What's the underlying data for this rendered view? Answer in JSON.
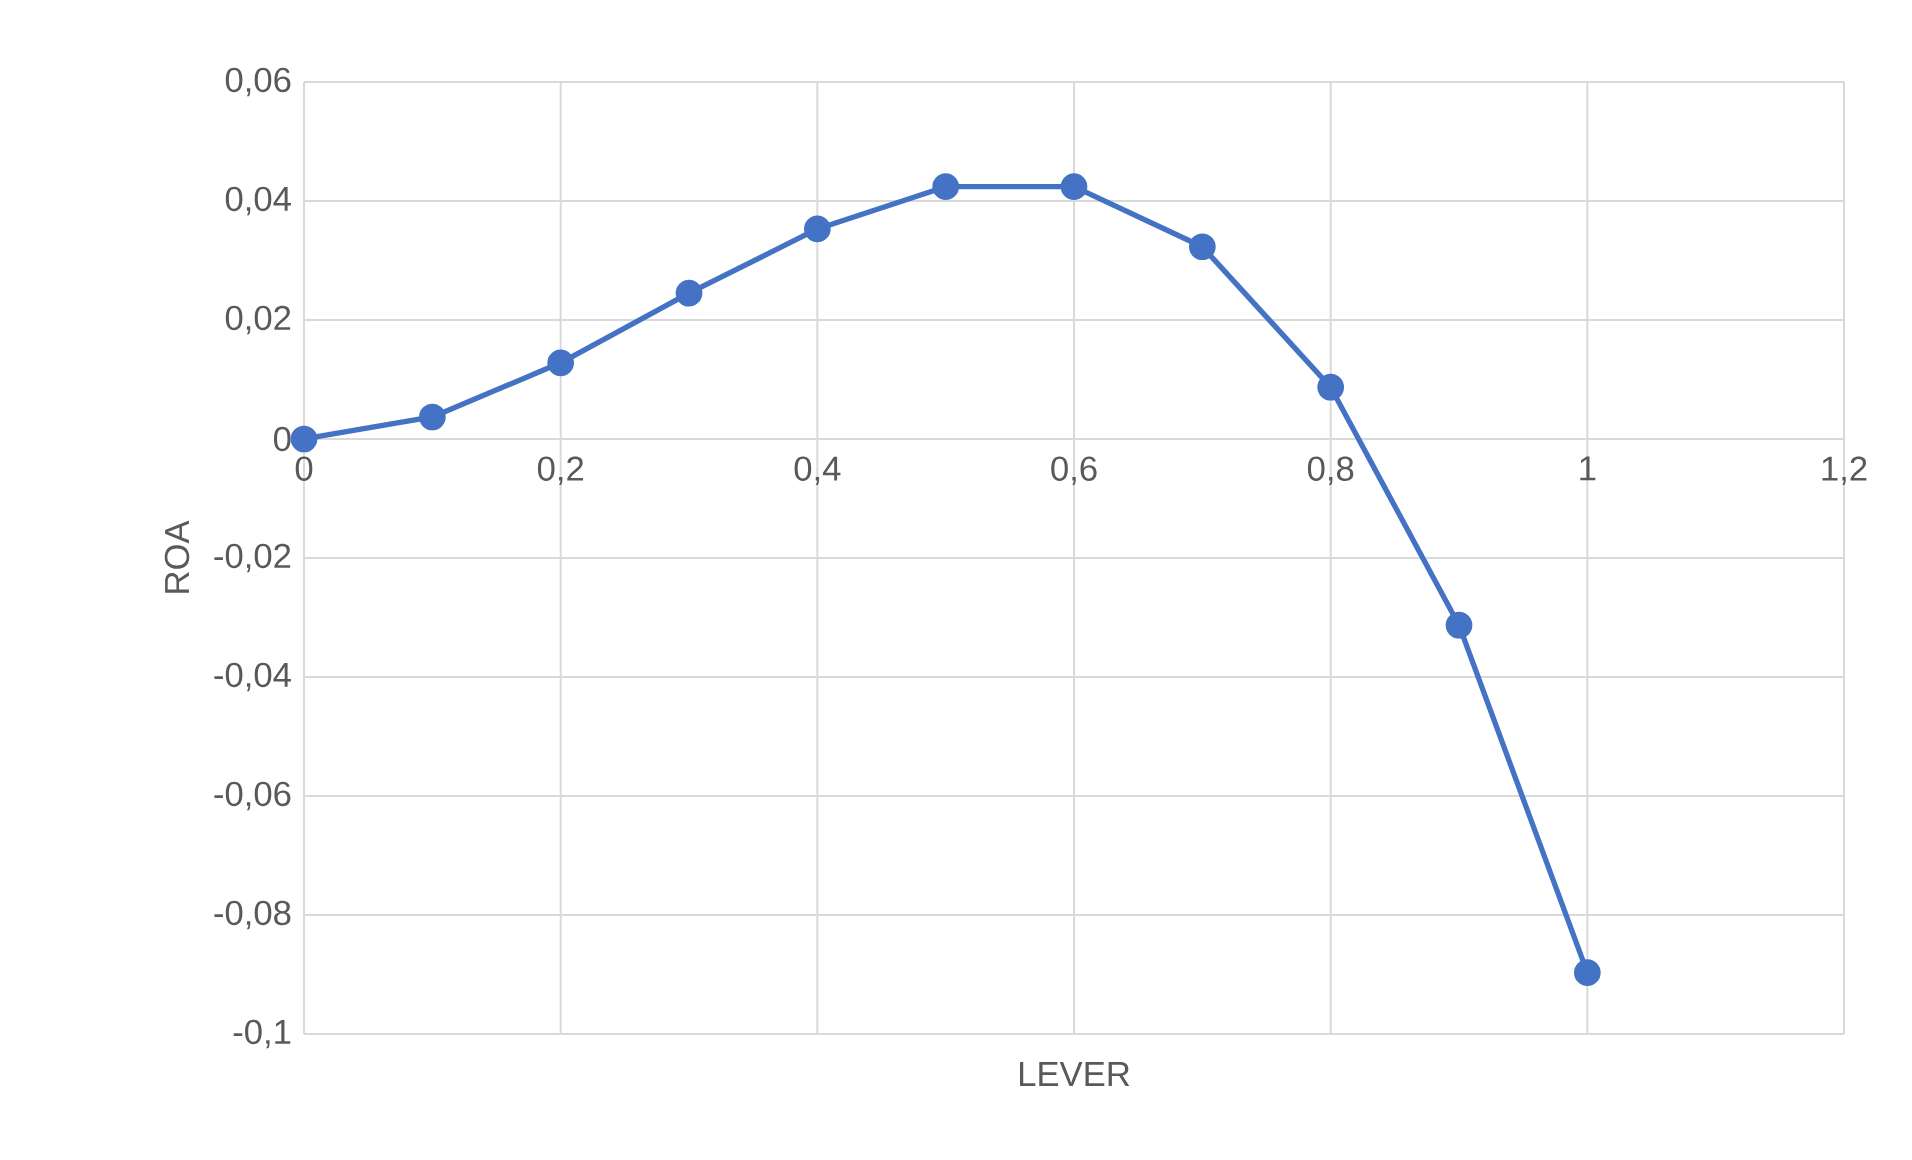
{
  "chart_data": {
    "type": "line",
    "xlabel": "LEVER",
    "ylabel": "ROA",
    "x": [
      0,
      0.1,
      0.2,
      0.3,
      0.4,
      0.5,
      0.6,
      0.7,
      0.8,
      0.9,
      1.0
    ],
    "series": [
      {
        "color": "#4472c4",
        "values": [
          0,
          0.0037,
          0.0128,
          0.0245,
          0.0353,
          0.0424,
          0.0424,
          0.0323,
          0.0087,
          -0.0313,
          -0.0897
        ]
      }
    ],
    "xlim": [
      0,
      1.2
    ],
    "xticks": [
      0,
      {
        "value": 0.2,
        "label": "0,2"
      },
      {
        "value": 0.4,
        "label": "0,4"
      },
      {
        "value": 0.6,
        "label": "0,6"
      },
      {
        "value": 0.8,
        "label": "0,8"
      },
      1,
      {
        "value": 1.2,
        "label": "1,2"
      }
    ],
    "ylim": [
      -0.1,
      0.06
    ],
    "yticks": [
      {
        "value": -0.1,
        "label": "-0,1"
      },
      {
        "value": -0.08,
        "label": "-0,08"
      },
      {
        "value": -0.06,
        "label": "-0,06"
      },
      {
        "value": -0.04,
        "label": "-0,04"
      },
      {
        "value": -0.02,
        "label": "-0,02"
      },
      0,
      {
        "value": 0.02,
        "label": "0,02"
      },
      {
        "value": 0.04,
        "label": "0,04"
      },
      {
        "value": 0.06,
        "label": "0,06"
      }
    ],
    "grid": true,
    "marker": "circle",
    "line_style": "solid"
  }
}
